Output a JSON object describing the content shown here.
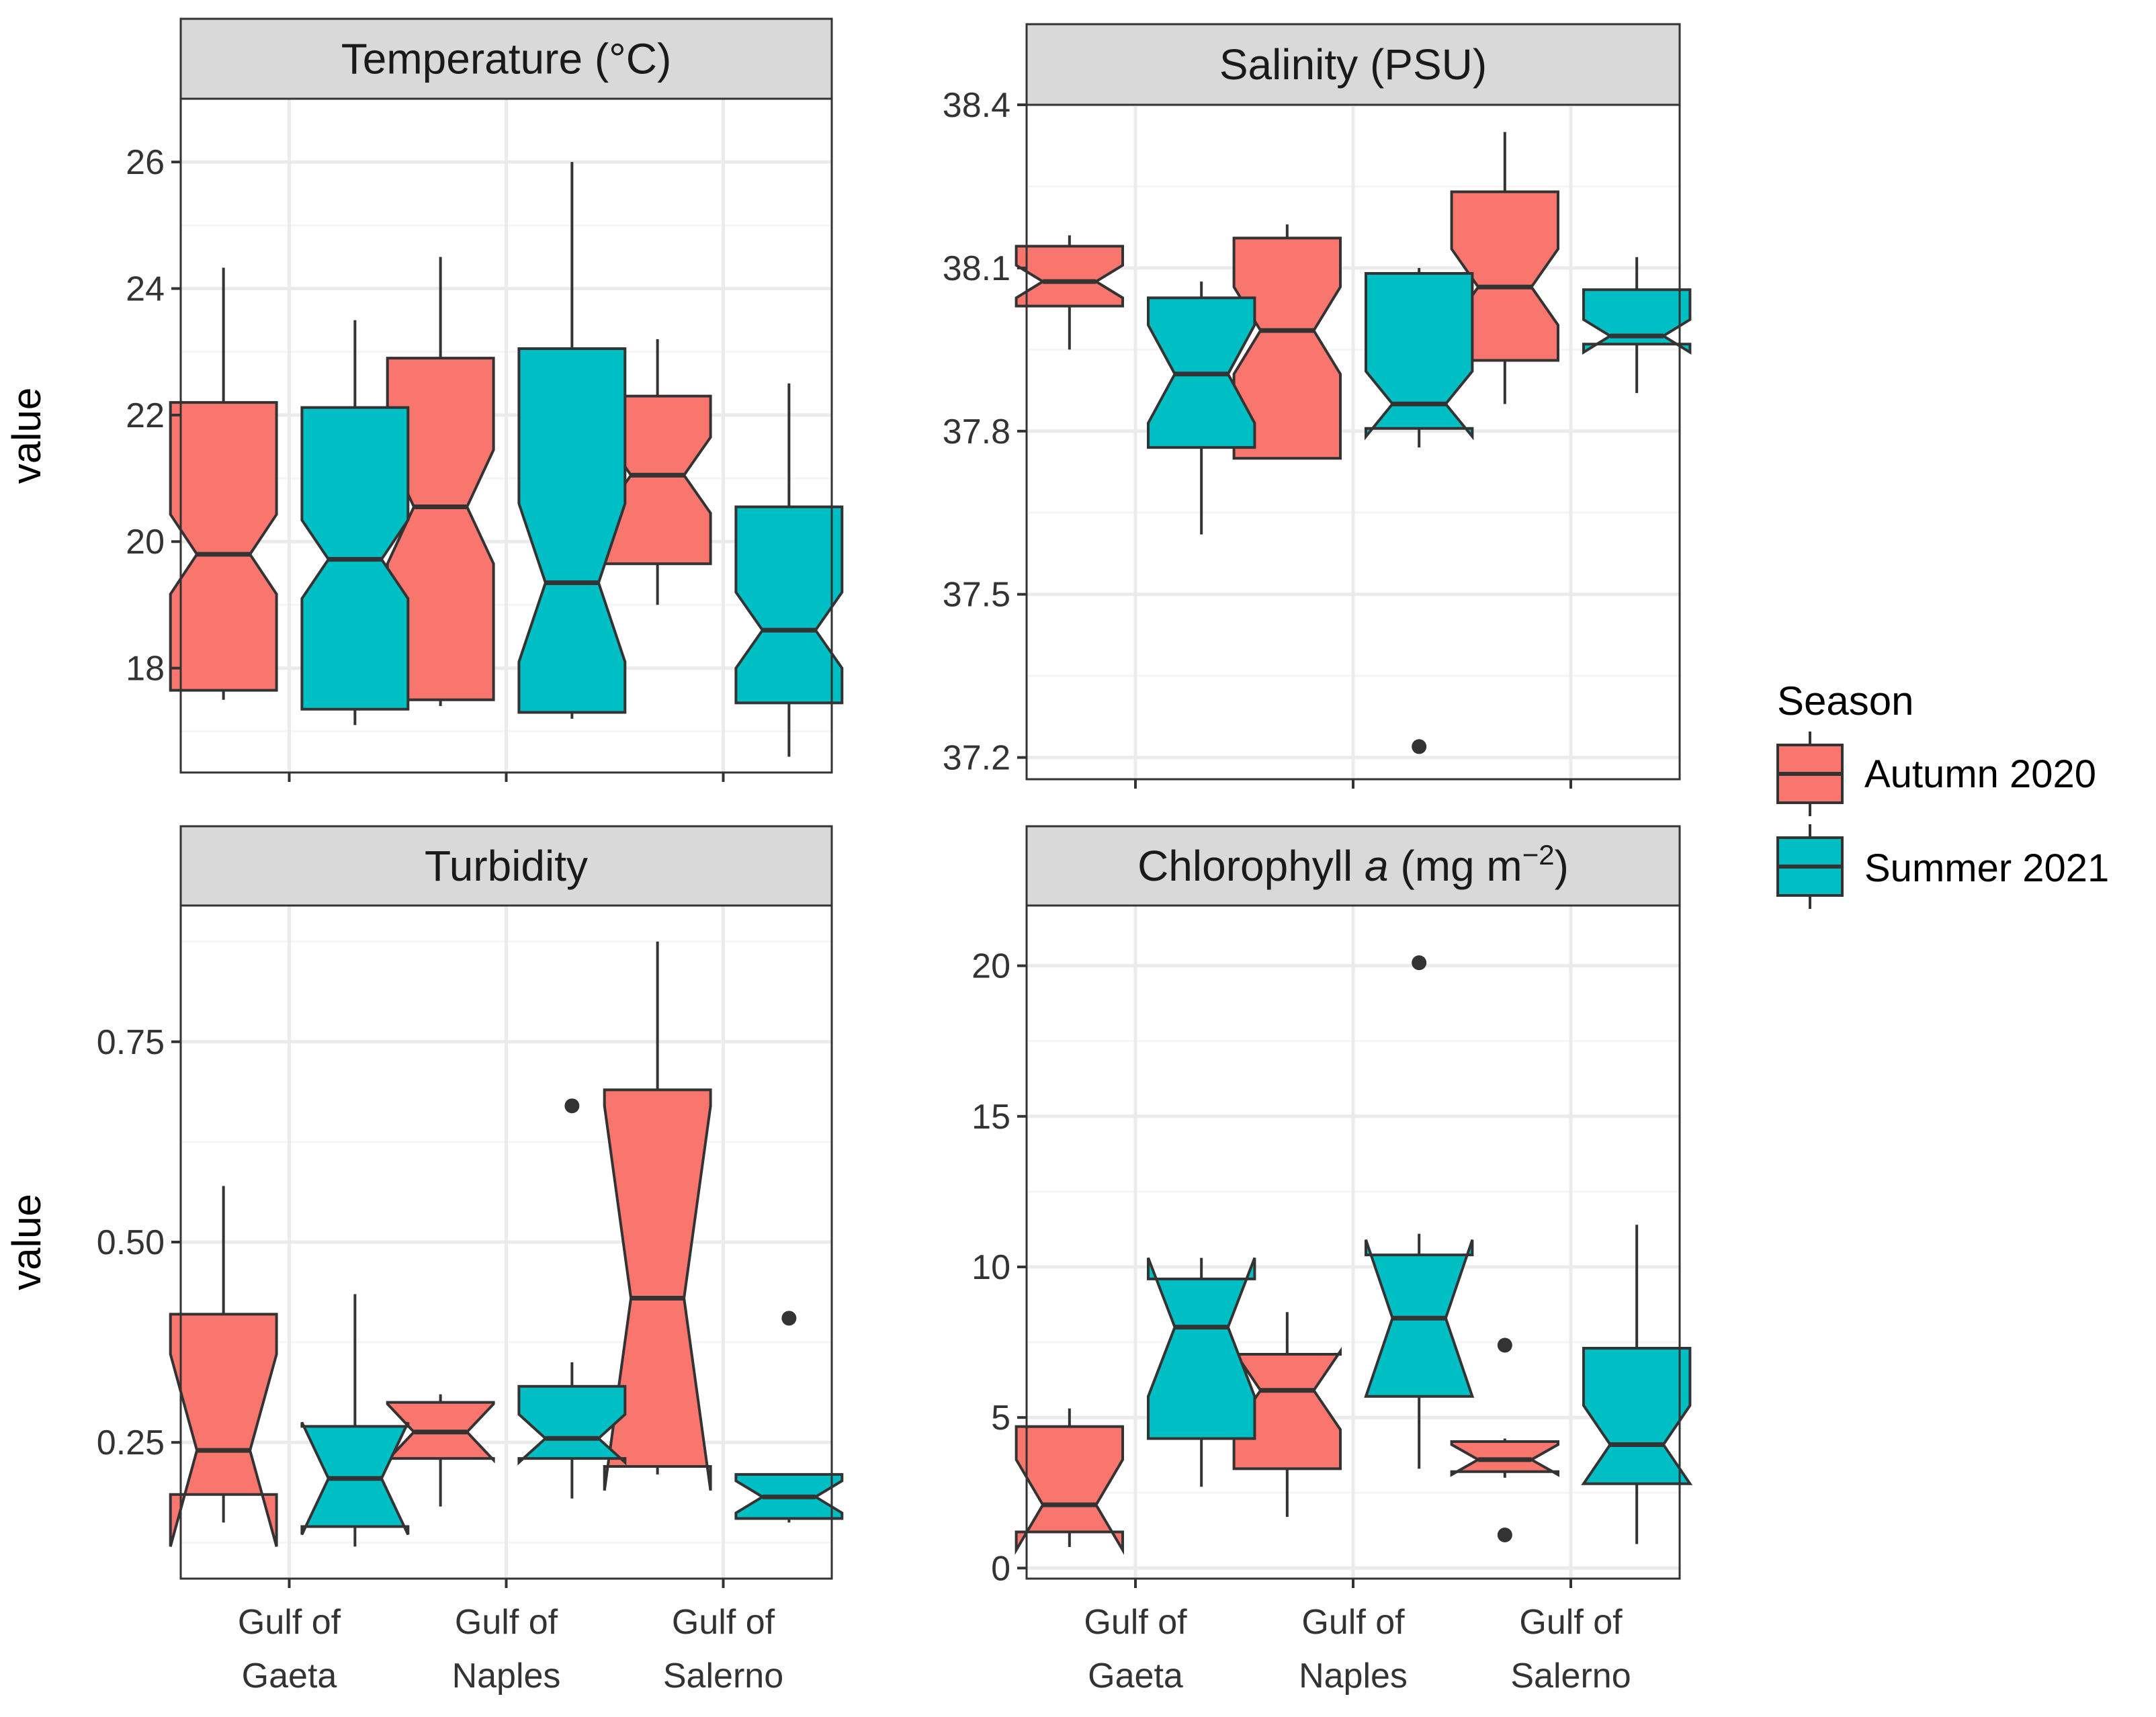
{
  "colors": {
    "autumn": "#F8766D",
    "summer": "#00BFC4",
    "outline": "#333333",
    "strip_fill": "#D9D9D9",
    "panel_border": "#333333",
    "grid_major": "#EBEBEB",
    "grid_minor": "#F5F5F5"
  },
  "legend": {
    "title": "Season",
    "items": [
      {
        "label": "Autumn 2020",
        "color": "#F8766D"
      },
      {
        "label": "Summer 2021",
        "color": "#00BFC4"
      }
    ]
  },
  "axis": {
    "ylabel": "value"
  },
  "chart_data": [
    {
      "type": "boxplot",
      "title": "Temperature (°C)",
      "categories": [
        "Gulf of Gaeta",
        "Gulf of Naples",
        "Gulf of Salerno"
      ],
      "category_lines": [
        [
          "Gulf of",
          "Gaeta"
        ],
        [
          "Gulf of",
          "Naples"
        ],
        [
          "Gulf of",
          "Salerno"
        ]
      ],
      "show_x_labels": false,
      "ylim": [
        16.35,
        27.0
      ],
      "yticks": [
        18,
        20,
        22,
        24,
        26
      ],
      "tick_labels": [
        "18",
        "20",
        "22",
        "24",
        "26"
      ],
      "series": [
        {
          "name": "Autumn 2020",
          "boxes": [
            {
              "min": 17.5,
              "q1": 17.65,
              "median": 19.8,
              "q3": 22.2,
              "max": 24.33,
              "notch": 0.63,
              "outliers": []
            },
            {
              "min": 17.4,
              "q1": 17.5,
              "median": 20.55,
              "q3": 22.9,
              "max": 24.5,
              "notch": 0.9,
              "outliers": []
            },
            {
              "min": 19.0,
              "q1": 19.65,
              "median": 21.05,
              "q3": 22.3,
              "max": 23.2,
              "notch": 0.6,
              "outliers": []
            }
          ]
        },
        {
          "name": "Summer 2021",
          "boxes": [
            {
              "min": 17.1,
              "q1": 17.35,
              "median": 19.72,
              "q3": 22.12,
              "max": 23.5,
              "notch": 0.62,
              "outliers": []
            },
            {
              "min": 17.2,
              "q1": 17.3,
              "median": 19.35,
              "q3": 23.05,
              "max": 26.0,
              "notch": 1.25,
              "outliers": []
            },
            {
              "min": 16.6,
              "q1": 17.45,
              "median": 18.6,
              "q3": 20.55,
              "max": 22.5,
              "notch": 0.6,
              "outliers": []
            }
          ]
        }
      ]
    },
    {
      "type": "boxplot",
      "title": "Salinity (PSU)",
      "categories": [
        "Gulf of Gaeta",
        "Gulf of Naples",
        "Gulf of Salerno"
      ],
      "category_lines": [
        [
          "Gulf of",
          "Gaeta"
        ],
        [
          "Gulf of",
          "Naples"
        ],
        [
          "Gulf of",
          "Salerno"
        ]
      ],
      "show_x_labels": false,
      "ylim": [
        37.16,
        38.4
      ],
      "yticks": [
        37.2,
        37.5,
        37.8,
        38.1,
        38.4
      ],
      "tick_labels": [
        "37.2",
        "37.5",
        "37.8",
        "38.1",
        "38.4"
      ],
      "series": [
        {
          "name": "Autumn 2020",
          "boxes": [
            {
              "min": 37.95,
              "q1": 38.03,
              "median": 38.075,
              "q3": 38.14,
              "max": 38.16,
              "notch": 0.03,
              "outliers": []
            },
            {
              "min": 37.75,
              "q1": 37.75,
              "median": 37.985,
              "q3": 38.155,
              "max": 38.18,
              "notch": 0.08,
              "outliers": []
            },
            {
              "min": 37.85,
              "q1": 37.93,
              "median": 38.065,
              "q3": 38.24,
              "max": 38.35,
              "notch": 0.07,
              "outliers": []
            }
          ]
        },
        {
          "name": "Summer 2021",
          "boxes": [
            {
              "min": 37.61,
              "q1": 37.77,
              "median": 37.905,
              "q3": 38.045,
              "max": 38.075,
              "notch": 0.09,
              "outliers": []
            },
            {
              "min": 37.77,
              "q1": 37.805,
              "median": 37.85,
              "q3": 38.09,
              "max": 38.1,
              "notch": 0.06,
              "outliers": [
                37.22
              ]
            },
            {
              "min": 37.87,
              "q1": 37.96,
              "median": 37.975,
              "q3": 38.06,
              "max": 38.12,
              "notch": 0.03,
              "outliers": []
            }
          ]
        }
      ]
    },
    {
      "type": "boxplot",
      "title": "Turbidity",
      "categories": [
        "Gulf of Gaeta",
        "Gulf of Naples",
        "Gulf of Salerno"
      ],
      "category_lines": [
        [
          "Gulf of",
          "Gaeta"
        ],
        [
          "Gulf of",
          "Naples"
        ],
        [
          "Gulf of",
          "Salerno"
        ]
      ],
      "show_x_labels": true,
      "ylim": [
        0.08,
        0.92
      ],
      "yticks": [
        0.25,
        0.5,
        0.75
      ],
      "tick_labels": [
        "0.25",
        "0.50",
        "0.75"
      ],
      "series": [
        {
          "name": "Autumn 2020",
          "boxes": [
            {
              "min": 0.15,
              "q1": 0.185,
              "median": 0.24,
              "q3": 0.41,
              "max": 0.57,
              "notch": 0.12,
              "outliers": []
            },
            {
              "min": 0.17,
              "q1": 0.23,
              "median": 0.263,
              "q3": 0.3,
              "max": 0.31,
              "notch": 0.035,
              "outliers": []
            },
            {
              "min": 0.21,
              "q1": 0.22,
              "median": 0.43,
              "q3": 0.69,
              "max": 0.875,
              "notch": 0.24,
              "outliers": []
            }
          ]
        },
        {
          "name": "Summer 2021",
          "boxes": [
            {
              "min": 0.12,
              "q1": 0.145,
              "median": 0.205,
              "q3": 0.27,
              "max": 0.435,
              "notch": 0.07,
              "outliers": []
            },
            {
              "min": 0.18,
              "q1": 0.23,
              "median": 0.255,
              "q3": 0.32,
              "max": 0.35,
              "notch": 0.03,
              "outliers": [
                0.67
              ]
            },
            {
              "min": 0.15,
              "q1": 0.155,
              "median": 0.182,
              "q3": 0.21,
              "max": 0.21,
              "notch": 0.02,
              "outliers": [
                0.405
              ]
            }
          ]
        }
      ]
    },
    {
      "type": "boxplot",
      "title": "Chlorophyll a (mg m⁻²)",
      "title_parts": {
        "pre": "Chlorophyll ",
        "italic": "a",
        "post": " (mg m",
        "sup": "−2",
        "end": ")"
      },
      "categories": [
        "Gulf of Gaeta",
        "Gulf of Naples",
        "Gulf of Salerno"
      ],
      "category_lines": [
        [
          "Gulf of",
          "Gaeta"
        ],
        [
          "Gulf of",
          "Naples"
        ],
        [
          "Gulf of",
          "Salerno"
        ]
      ],
      "show_x_labels": true,
      "ylim": [
        -0.35,
        22.0
      ],
      "yticks": [
        0,
        5,
        10,
        15,
        20
      ],
      "tick_labels": [
        "0",
        "5",
        "10",
        "15",
        "20"
      ],
      "series": [
        {
          "name": "Autumn 2020",
          "boxes": [
            {
              "min": 0.7,
              "q1": 1.2,
              "median": 2.1,
              "q3": 4.7,
              "max": 5.3,
              "notch": 1.5,
              "outliers": []
            },
            {
              "min": 1.7,
              "q1": 3.3,
              "median": 5.9,
              "q3": 7.1,
              "max": 8.5,
              "notch": 1.3,
              "outliers": []
            },
            {
              "min": 3.0,
              "q1": 3.2,
              "median": 3.6,
              "q3": 4.2,
              "max": 4.3,
              "notch": 0.5,
              "outliers": [
                7.4,
                1.1
              ]
            }
          ]
        },
        {
          "name": "Summer 2021",
          "boxes": [
            {
              "min": 2.7,
              "q1": 4.3,
              "median": 8.0,
              "q3": 9.6,
              "max": 10.3,
              "notch": 2.3,
              "outliers": []
            },
            {
              "min": 3.3,
              "q1": 5.7,
              "median": 8.3,
              "q3": 10.4,
              "max": 11.1,
              "notch": 2.6,
              "outliers": [
                20.1
              ]
            },
            {
              "min": 0.8,
              "q1": 2.8,
              "median": 4.1,
              "q3": 7.3,
              "max": 11.4,
              "notch": 1.3,
              "outliers": []
            }
          ]
        }
      ]
    }
  ]
}
